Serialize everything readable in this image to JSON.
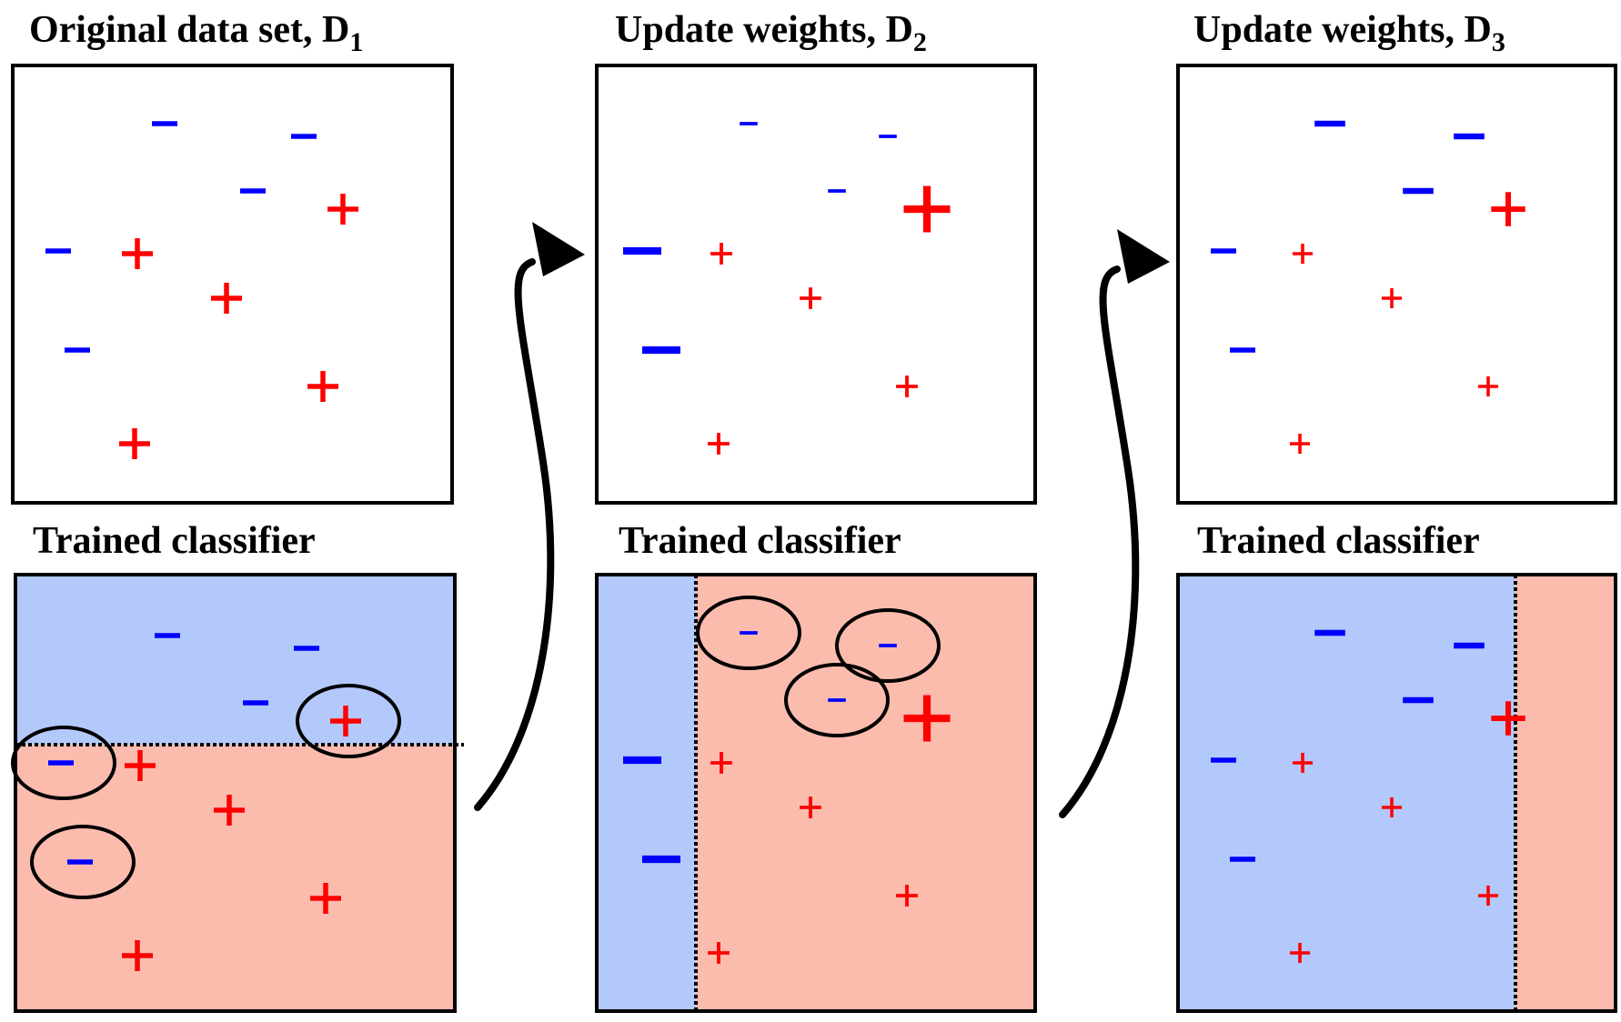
{
  "colors": {
    "negative_region": "#b3c9fb",
    "positive_region": "#fbbcae",
    "minus": "#0000ff",
    "plus": "#ff0000"
  },
  "labels": {
    "minus_symbol": "−",
    "plus_symbol": "+"
  },
  "panels": [
    {
      "title_main": "Original data set,  D",
      "title_sub": "1",
      "classifier_title": "Trained classifier",
      "split": "horizontal",
      "points": [
        {
          "sign": "-",
          "weight": 1.0
        },
        {
          "sign": "-",
          "weight": 1.0
        },
        {
          "sign": "-",
          "weight": 1.0
        },
        {
          "sign": "+",
          "weight": 1.0
        },
        {
          "sign": "-",
          "weight": 1.0
        },
        {
          "sign": "+",
          "weight": 1.0
        },
        {
          "sign": "+",
          "weight": 1.0
        },
        {
          "sign": "-",
          "weight": 1.0
        },
        {
          "sign": "+",
          "weight": 1.0
        },
        {
          "sign": "+",
          "weight": 1.0
        }
      ],
      "misclassified": [
        3,
        4,
        7
      ]
    },
    {
      "title_main": "Update weights,  D",
      "title_sub": "2",
      "classifier_title": "Trained classifier",
      "split": "vertical-left-negative",
      "points": [
        {
          "sign": "-",
          "weight": 0.7
        },
        {
          "sign": "-",
          "weight": 0.7
        },
        {
          "sign": "-",
          "weight": 0.7
        },
        {
          "sign": "+",
          "weight": 1.5
        },
        {
          "sign": "-",
          "weight": 1.5
        },
        {
          "sign": "+",
          "weight": 0.7
        },
        {
          "sign": "+",
          "weight": 0.7
        },
        {
          "sign": "-",
          "weight": 1.5
        },
        {
          "sign": "+",
          "weight": 0.7
        },
        {
          "sign": "+",
          "weight": 0.7
        }
      ],
      "misclassified": [
        0,
        1,
        2
      ]
    },
    {
      "title_main": "Update weights,  D",
      "title_sub": "3",
      "classifier_title": "Trained classifier",
      "split": "vertical-right-positive",
      "points": [
        {
          "sign": "-",
          "weight": 1.2
        },
        {
          "sign": "-",
          "weight": 1.2
        },
        {
          "sign": "-",
          "weight": 1.2
        },
        {
          "sign": "+",
          "weight": 1.1
        },
        {
          "sign": "-",
          "weight": 1.0
        },
        {
          "sign": "+",
          "weight": 0.65
        },
        {
          "sign": "+",
          "weight": 0.65
        },
        {
          "sign": "-",
          "weight": 1.0
        },
        {
          "sign": "+",
          "weight": 0.65
        },
        {
          "sign": "+",
          "weight": 0.65
        }
      ],
      "misclassified": []
    }
  ]
}
